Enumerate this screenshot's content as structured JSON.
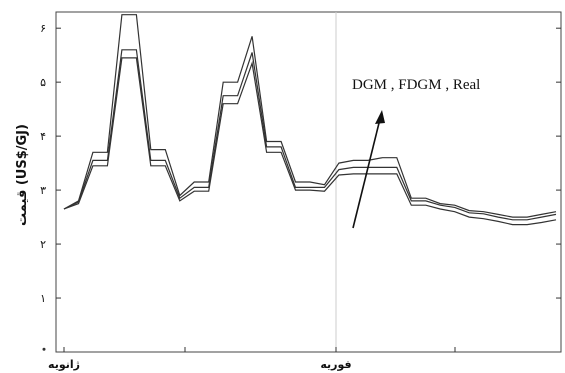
{
  "chart_data": {
    "type": "line",
    "ylabel": "قیمت (US$/GJ)",
    "y_ticks": [
      "۱",
      "۲",
      "۳",
      "۴",
      "۵",
      "۶"
    ],
    "ylim": [
      0,
      6.3
    ],
    "x_tick_labels": [
      "ژانویه",
      "فوریه"
    ],
    "grid": true,
    "annotation": "DGM , FDGM , Real",
    "series": [
      {
        "values": [
          2.65,
          2.8,
          3.7,
          3.7,
          6.25,
          6.25,
          3.75,
          3.75,
          2.9,
          3.15,
          3.15,
          5.0,
          5.0,
          5.85,
          3.9,
          3.9,
          3.15,
          3.15,
          3.1,
          3.5,
          3.55,
          3.55,
          3.6,
          3.6,
          2.85,
          2.85,
          2.75,
          2.72,
          2.62,
          2.6,
          2.55,
          2.5,
          2.5,
          2.55,
          2.6
        ]
      },
      {
        "values": [
          2.65,
          2.78,
          3.55,
          3.55,
          5.6,
          5.6,
          3.55,
          3.55,
          2.85,
          3.05,
          3.05,
          4.75,
          4.75,
          5.55,
          3.8,
          3.8,
          3.05,
          3.05,
          3.05,
          3.38,
          3.42,
          3.42,
          3.42,
          3.42,
          2.8,
          2.8,
          2.72,
          2.68,
          2.58,
          2.56,
          2.5,
          2.45,
          2.45,
          2.5,
          2.55
        ]
      },
      {
        "values": [
          2.65,
          2.75,
          3.45,
          3.45,
          5.45,
          5.45,
          3.45,
          3.45,
          2.8,
          2.98,
          2.98,
          4.6,
          4.6,
          5.35,
          3.7,
          3.7,
          3.0,
          3.0,
          2.98,
          3.28,
          3.3,
          3.3,
          3.3,
          3.3,
          2.72,
          2.72,
          2.65,
          2.6,
          2.5,
          2.47,
          2.42,
          2.36,
          2.36,
          2.4,
          2.45
        ]
      }
    ]
  }
}
